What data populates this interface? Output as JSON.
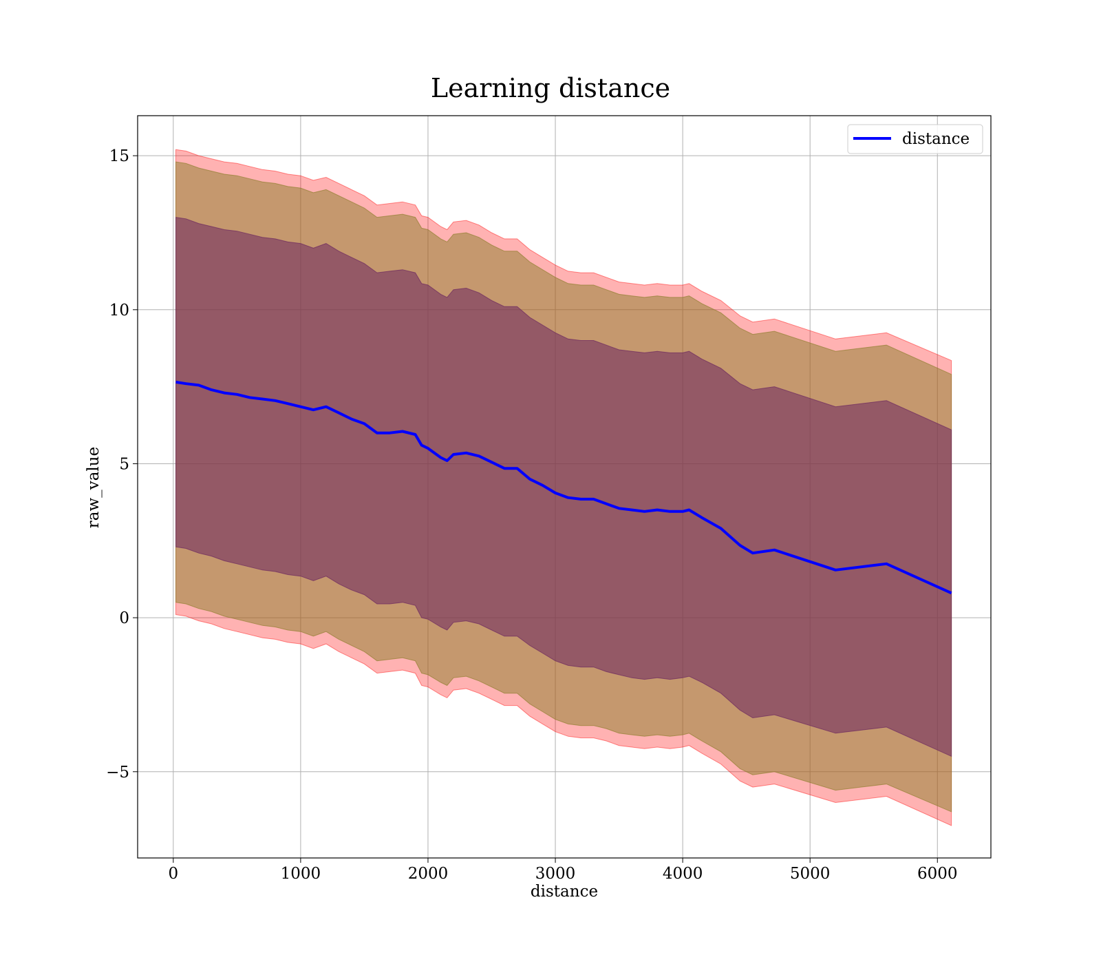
{
  "chart_data": {
    "type": "line",
    "title": "Learning distance",
    "xlabel": "distance",
    "ylabel": "raw_value",
    "xlim": [
      -280,
      6420
    ],
    "ylim": [
      -7.8,
      16.3
    ],
    "xticks": [
      0,
      1000,
      2000,
      3000,
      4000,
      5000,
      6000
    ],
    "xtick_labels": [
      "0",
      "1000",
      "2000",
      "3000",
      "4000",
      "5000",
      "6000"
    ],
    "yticks": [
      -5,
      0,
      5,
      10,
      15
    ],
    "ytick_labels": [
      "−5",
      "0",
      "5",
      "10",
      "15"
    ],
    "grid": true,
    "legend": {
      "position": "upper right",
      "entries": [
        "distance"
      ]
    },
    "colors": {
      "line": "#0000ff",
      "band_outer": "#ff0000",
      "band_middle": "#8b7d2a",
      "band_inner": "#6b2760",
      "grid": "#b0b0b0"
    },
    "series": [
      {
        "name": "distance",
        "x": [
          20,
          100,
          200,
          300,
          400,
          500,
          600,
          700,
          800,
          900,
          1000,
          1100,
          1200,
          1300,
          1400,
          1500,
          1600,
          1700,
          1800,
          1900,
          1950,
          2000,
          2100,
          2150,
          2200,
          2300,
          2400,
          2500,
          2600,
          2700,
          2800,
          2900,
          3000,
          3100,
          3200,
          3300,
          3400,
          3500,
          3600,
          3700,
          3800,
          3900,
          4000,
          4050,
          4150,
          4300,
          4450,
          4550,
          4720,
          5200,
          5600,
          6110
        ],
        "y": [
          7.65,
          7.6,
          7.55,
          7.4,
          7.3,
          7.25,
          7.15,
          7.1,
          7.05,
          6.95,
          6.85,
          6.75,
          6.85,
          6.65,
          6.45,
          6.3,
          6.0,
          6.0,
          6.05,
          5.95,
          5.6,
          5.5,
          5.2,
          5.1,
          5.3,
          5.35,
          5.25,
          5.05,
          4.85,
          4.85,
          4.5,
          4.3,
          4.05,
          3.9,
          3.85,
          3.85,
          3.7,
          3.55,
          3.5,
          3.45,
          3.5,
          3.45,
          3.45,
          3.5,
          3.25,
          2.9,
          2.35,
          2.1,
          2.2,
          1.55,
          1.75,
          0.8
        ],
        "band_inner": {
          "lower": [
            2.3,
            2.25,
            2.1,
            2.0,
            1.85,
            1.75,
            1.65,
            1.55,
            1.5,
            1.4,
            1.35,
            1.2,
            1.35,
            1.1,
            0.9,
            0.75,
            0.45,
            0.45,
            0.5,
            0.4,
            0.0,
            -0.05,
            -0.3,
            -0.4,
            -0.15,
            -0.1,
            -0.2,
            -0.4,
            -0.6,
            -0.6,
            -0.9,
            -1.15,
            -1.4,
            -1.55,
            -1.6,
            -1.6,
            -1.75,
            -1.85,
            -1.95,
            -2.0,
            -1.95,
            -2.0,
            -1.95,
            -1.9,
            -2.1,
            -2.45,
            -3.0,
            -3.25,
            -3.15,
            -3.75,
            -3.55,
            -4.5
          ],
          "upper": [
            13.0,
            12.95,
            12.8,
            12.7,
            12.6,
            12.55,
            12.45,
            12.35,
            12.3,
            12.2,
            12.15,
            12.0,
            12.15,
            11.9,
            11.7,
            11.5,
            11.2,
            11.25,
            11.3,
            11.2,
            10.85,
            10.8,
            10.5,
            10.4,
            10.65,
            10.7,
            10.55,
            10.3,
            10.1,
            10.1,
            9.75,
            9.5,
            9.25,
            9.05,
            9.0,
            9.0,
            8.85,
            8.7,
            8.65,
            8.6,
            8.65,
            8.6,
            8.6,
            8.65,
            8.4,
            8.1,
            7.6,
            7.4,
            7.5,
            6.85,
            7.05,
            6.1
          ]
        },
        "band_middle": {
          "lower": [
            0.5,
            0.45,
            0.3,
            0.2,
            0.05,
            -0.05,
            -0.15,
            -0.25,
            -0.3,
            -0.4,
            -0.45,
            -0.6,
            -0.45,
            -0.7,
            -0.9,
            -1.1,
            -1.4,
            -1.35,
            -1.3,
            -1.4,
            -1.8,
            -1.85,
            -2.1,
            -2.2,
            -1.95,
            -1.9,
            -2.05,
            -2.25,
            -2.45,
            -2.45,
            -2.8,
            -3.05,
            -3.3,
            -3.45,
            -3.5,
            -3.5,
            -3.6,
            -3.75,
            -3.8,
            -3.85,
            -3.8,
            -3.85,
            -3.8,
            -3.75,
            -4.0,
            -4.35,
            -4.9,
            -5.1,
            -5.0,
            -5.6,
            -5.4,
            -6.3
          ],
          "upper": [
            14.8,
            14.75,
            14.6,
            14.5,
            14.4,
            14.35,
            14.25,
            14.15,
            14.1,
            14.0,
            13.95,
            13.8,
            13.9,
            13.7,
            13.5,
            13.3,
            13.0,
            13.05,
            13.1,
            13.0,
            12.65,
            12.6,
            12.3,
            12.2,
            12.45,
            12.5,
            12.35,
            12.1,
            11.9,
            11.9,
            11.55,
            11.3,
            11.05,
            10.85,
            10.8,
            10.8,
            10.65,
            10.5,
            10.45,
            10.4,
            10.45,
            10.4,
            10.4,
            10.45,
            10.2,
            9.9,
            9.4,
            9.2,
            9.3,
            8.65,
            8.85,
            7.9
          ]
        },
        "band_outer": {
          "lower": [
            0.1,
            0.05,
            -0.1,
            -0.2,
            -0.35,
            -0.45,
            -0.55,
            -0.65,
            -0.7,
            -0.8,
            -0.85,
            -1.0,
            -0.85,
            -1.1,
            -1.3,
            -1.5,
            -1.8,
            -1.75,
            -1.7,
            -1.8,
            -2.2,
            -2.25,
            -2.5,
            -2.6,
            -2.35,
            -2.3,
            -2.45,
            -2.65,
            -2.85,
            -2.85,
            -3.2,
            -3.45,
            -3.7,
            -3.85,
            -3.9,
            -3.9,
            -4.0,
            -4.15,
            -4.2,
            -4.25,
            -4.2,
            -4.25,
            -4.2,
            -4.15,
            -4.4,
            -4.75,
            -5.3,
            -5.5,
            -5.4,
            -6.0,
            -5.8,
            -6.75
          ],
          "upper": [
            15.2,
            15.15,
            15.0,
            14.9,
            14.8,
            14.75,
            14.65,
            14.55,
            14.5,
            14.4,
            14.35,
            14.2,
            14.3,
            14.1,
            13.9,
            13.7,
            13.4,
            13.45,
            13.5,
            13.4,
            13.05,
            13.0,
            12.7,
            12.6,
            12.85,
            12.9,
            12.75,
            12.5,
            12.3,
            12.3,
            11.95,
            11.7,
            11.45,
            11.25,
            11.2,
            11.2,
            11.05,
            10.9,
            10.85,
            10.8,
            10.85,
            10.8,
            10.8,
            10.85,
            10.6,
            10.3,
            9.8,
            9.6,
            9.7,
            9.05,
            9.25,
            8.35
          ]
        }
      }
    ]
  }
}
